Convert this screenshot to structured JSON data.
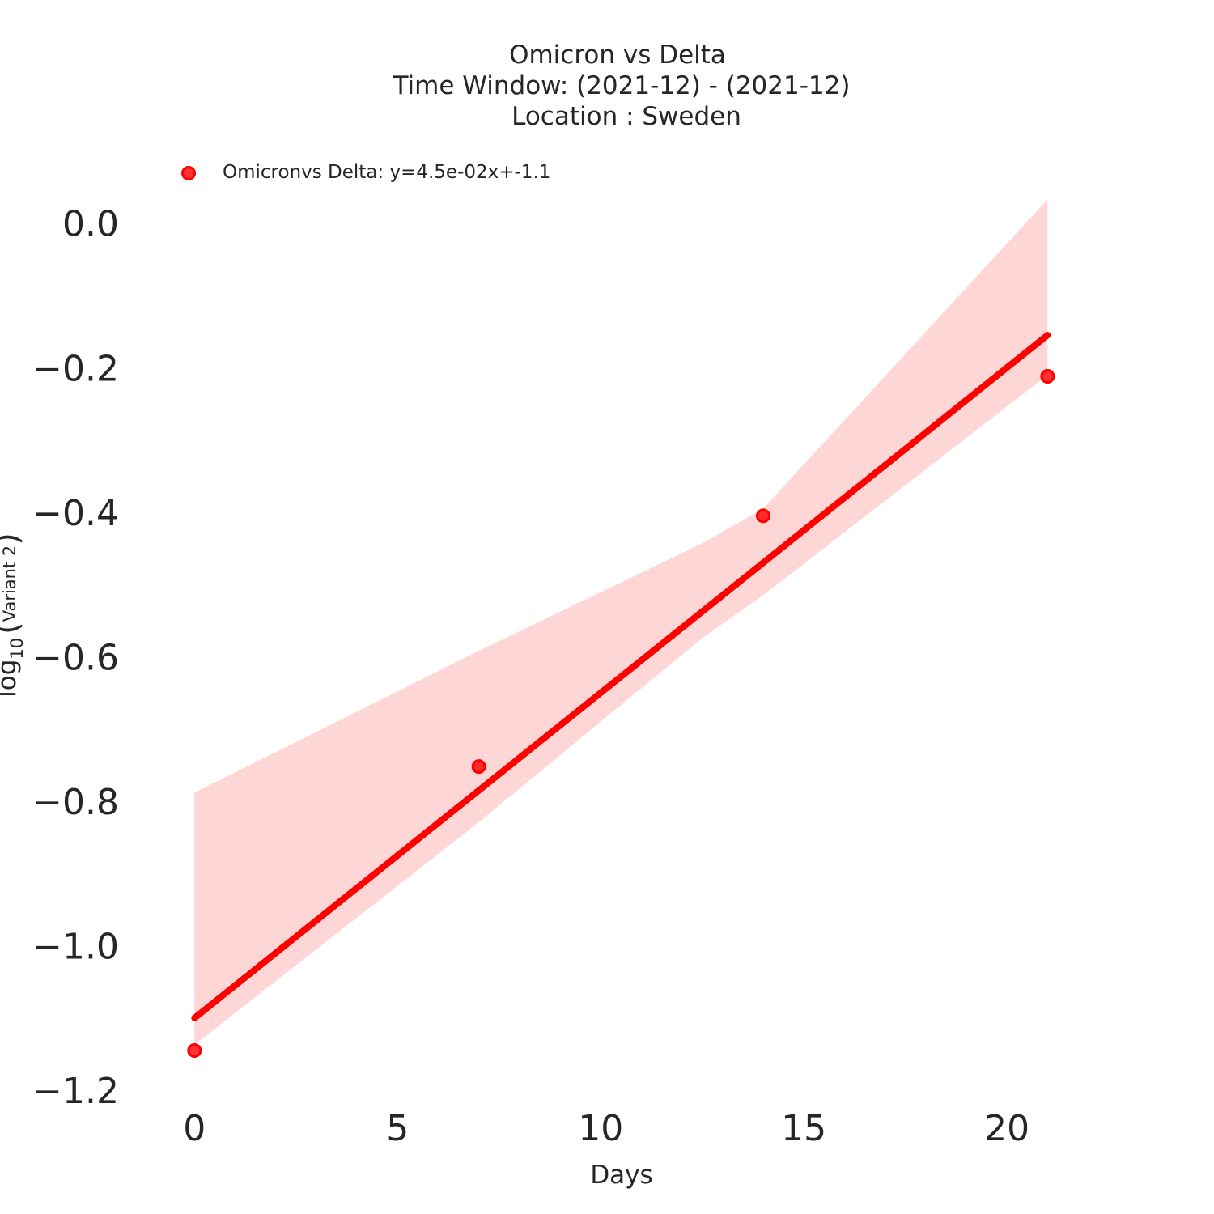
{
  "chart_data": {
    "type": "scatter",
    "title_lines": [
      "Omicron vs Delta",
      "Time Window: (2021-12) - (2021-12)",
      "Location : Sweden"
    ],
    "xlabel": "Days",
    "ylabel_main": "log",
    "ylabel_sub": "10",
    "ylabel_paren_open": "(",
    "ylabel_inner": "Variant 2",
    "ylabel_paren_close": ")",
    "xlim": [
      -1.5,
      24.5
    ],
    "ylim": [
      -1.22,
      0.04
    ],
    "x_ticks": [
      0,
      5,
      10,
      15,
      20
    ],
    "x_tick_labels": [
      "0",
      "5",
      "10",
      "15",
      "20"
    ],
    "y_ticks": [
      0.0,
      -0.2,
      -0.4,
      -0.6,
      -0.8,
      -1.0,
      -1.2
    ],
    "y_tick_labels": [
      "0.0",
      "−0.2",
      "−0.4",
      "−0.6",
      "−0.8",
      "−1.0",
      "−1.2"
    ],
    "grid": false,
    "legend_position": "top-left",
    "series": [
      {
        "name": "Omicronvs Delta: y=4.5e-02x+-1.1",
        "color": "#ff0000",
        "points": [
          {
            "x": 0,
            "y": -1.145
          },
          {
            "x": 7,
            "y": -0.752
          },
          {
            "x": 14,
            "y": -0.405
          },
          {
            "x": 21,
            "y": -0.212
          }
        ],
        "regression_line": {
          "x": [
            0,
            21
          ],
          "y": [
            -1.1,
            -0.155
          ]
        },
        "confidence_band": {
          "x": [
            0,
            7,
            12.5,
            14,
            21
          ],
          "upper": [
            -0.788,
            -0.592,
            -0.443,
            -0.395,
            0.033
          ],
          "lower": [
            -1.137,
            -0.829,
            -0.574,
            -0.515,
            -0.21
          ]
        }
      }
    ]
  }
}
